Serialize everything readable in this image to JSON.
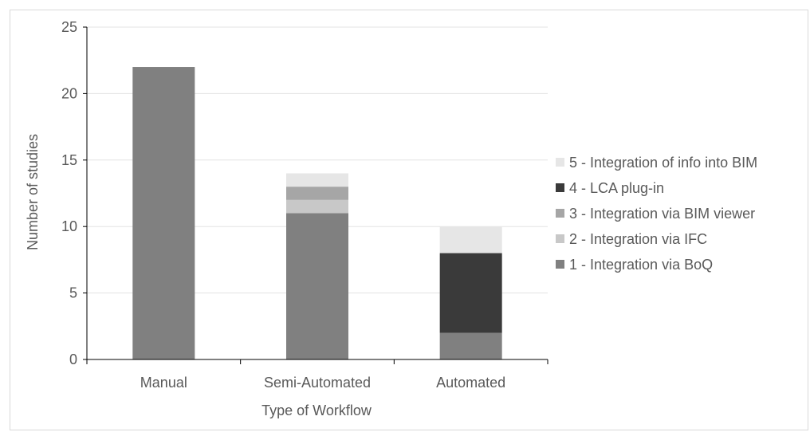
{
  "chart_data": {
    "type": "bar",
    "stacked": true,
    "title": "",
    "xlabel": "Type of Workflow",
    "ylabel": "Number of studies",
    "categories": [
      "Manual",
      "Semi-Automated",
      "Automated"
    ],
    "ylim": [
      0,
      25
    ],
    "yticks": [
      "0",
      "5",
      "10",
      "15",
      "20",
      "25"
    ],
    "grid": true,
    "legend_position": "right",
    "series": [
      {
        "name": "1 - Integration via BoQ",
        "color": "#808080",
        "values": [
          22,
          11,
          2
        ]
      },
      {
        "name": "2 - Integration via IFC",
        "color": "#c8c8c8",
        "values": [
          0,
          1,
          0
        ]
      },
      {
        "name": "3 - Integration via BIM viewer",
        "color": "#a6a6a6",
        "values": [
          0,
          1,
          0
        ]
      },
      {
        "name": "4 - LCA plug-in",
        "color": "#3a3a3a",
        "values": [
          0,
          0,
          6
        ]
      },
      {
        "name": "5 - Integration of info into BIM",
        "color": "#e6e6e6",
        "values": [
          0,
          1,
          2
        ]
      }
    ]
  }
}
